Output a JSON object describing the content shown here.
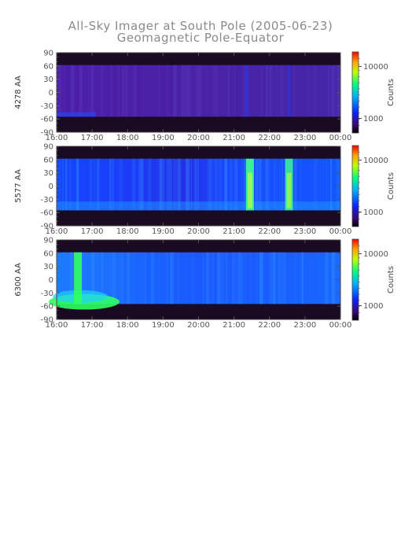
{
  "title": "All-Sky Imager at South Pole (2005-06-23)",
  "subtitle": "Geomagnetic Pole-Equator",
  "chart_data": [
    {
      "type": "heatmap",
      "ylabel": "4278 AA",
      "colorbar_label": "Counts",
      "colorbar_ticks": [
        "10000",
        "1000"
      ],
      "x_ticks": [
        "16:00",
        "17:00",
        "18:00",
        "19:00",
        "20:00",
        "21:00",
        "22:00",
        "23:00",
        "00:00"
      ],
      "y_ticks": [
        "90",
        "60",
        "30",
        "0",
        "-30",
        "-60",
        "-90"
      ],
      "ylim": [
        -90,
        90
      ],
      "data_lat_range": [
        -55,
        62
      ],
      "colors": {
        "background": "#4a20a0",
        "no_data": "#1a0a22",
        "bright": "#1a3cff"
      },
      "features": [
        {
          "time": 21.35,
          "intensity": 0.5
        },
        {
          "time": 22.55,
          "intensity": 0.4
        }
      ]
    },
    {
      "type": "heatmap",
      "ylabel": "5577 AA",
      "colorbar_label": "Counts",
      "colorbar_ticks": [
        "10000",
        "1000"
      ],
      "x_ticks": [
        "16:00",
        "17:00",
        "18:00",
        "19:00",
        "20:00",
        "21:00",
        "22:00",
        "23:00",
        "00:00"
      ],
      "y_ticks": [
        "90",
        "60",
        "30",
        "0",
        "-30",
        "-60",
        "-90"
      ],
      "ylim": [
        -90,
        90
      ],
      "data_lat_range": [
        -55,
        62
      ],
      "colors": {
        "background": "#1440ff",
        "no_data": "#1a0a22",
        "bright": "#40ff90"
      },
      "features": [
        {
          "time": 21.45,
          "intensity": 0.9
        },
        {
          "time": 22.55,
          "intensity": 0.8
        }
      ]
    },
    {
      "type": "heatmap",
      "ylabel": "6300 AA",
      "colorbar_label": "Counts",
      "colorbar_ticks": [
        "10000",
        "1000"
      ],
      "x_ticks": [
        "16:00",
        "17:00",
        "18:00",
        "19:00",
        "20:00",
        "21:00",
        "22:00",
        "23:00",
        "00:00"
      ],
      "y_ticks": [
        "90",
        "60",
        "30",
        "0",
        "-30",
        "-60",
        "-90"
      ],
      "ylim": [
        -90,
        90
      ],
      "data_lat_range": [
        -55,
        62
      ],
      "colors": {
        "background": "#1a6aff",
        "no_data": "#1a0a22",
        "bright": "#30ff60"
      },
      "features": [
        {
          "time": 16.6,
          "intensity": 0.9
        }
      ]
    }
  ]
}
